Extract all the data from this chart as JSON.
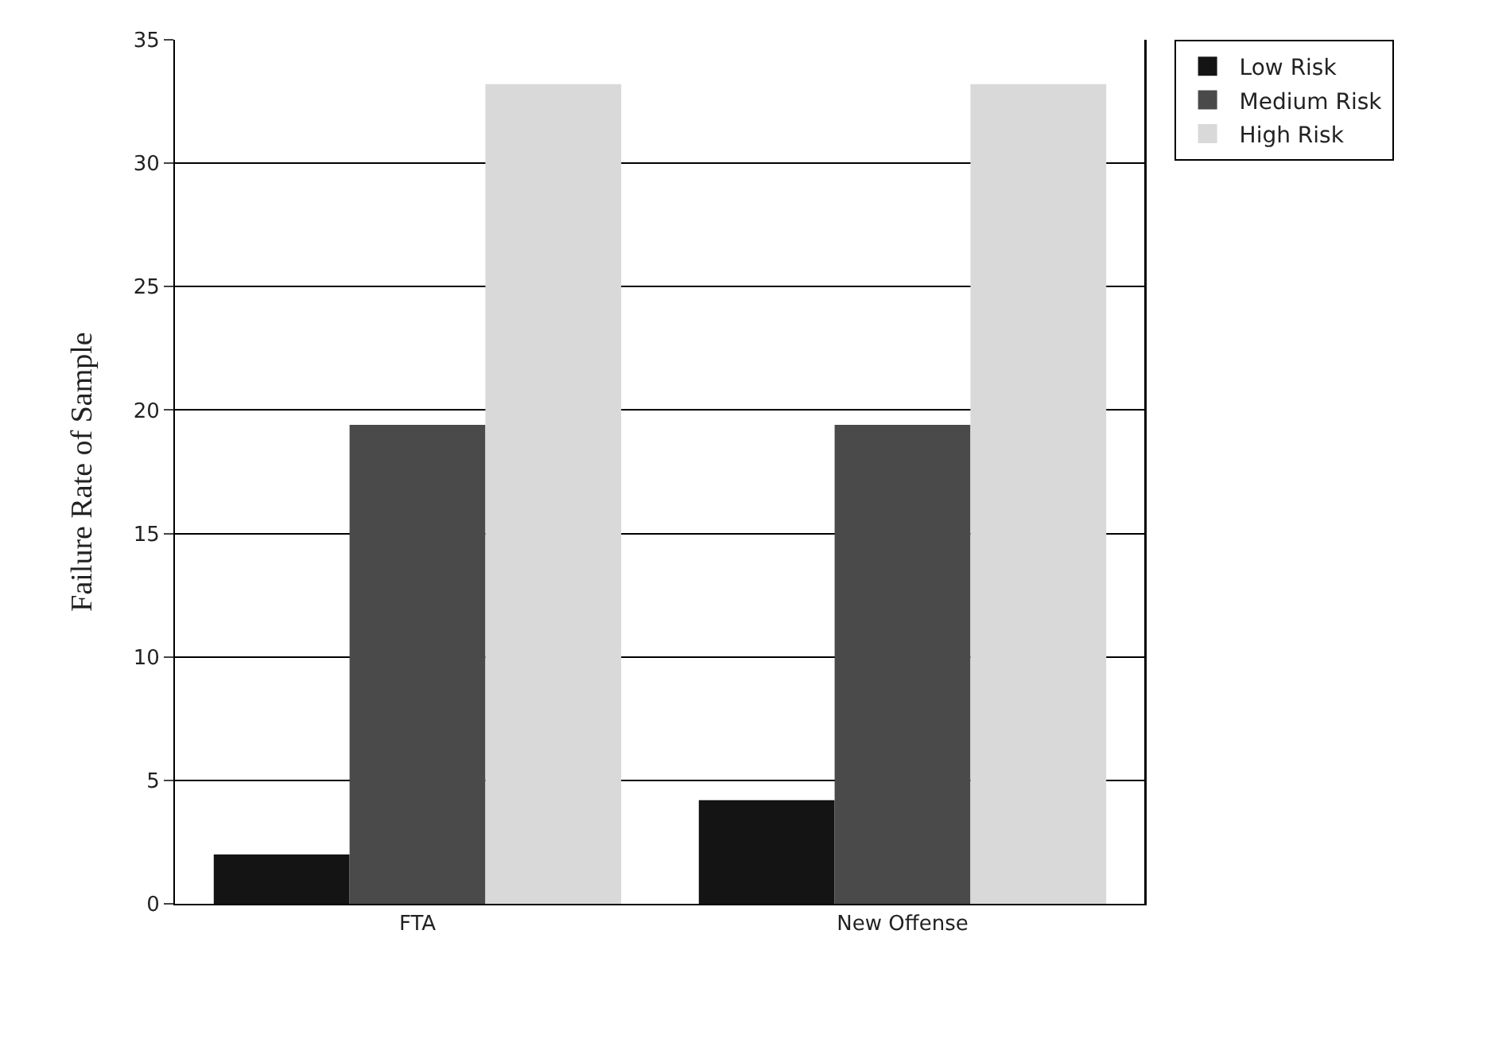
{
  "chart_data": {
    "type": "bar",
    "ylabel": "Failure Rate of Sample",
    "categories": [
      "FTA",
      "New Offense"
    ],
    "series": [
      {
        "name": "Low Risk",
        "color": "#141414",
        "values": [
          2.0,
          4.2
        ]
      },
      {
        "name": "Medium Risk",
        "color": "#4a4a4a",
        "values": [
          19.4,
          19.4
        ]
      },
      {
        "name": "High Risk",
        "color": "#d9d9d9",
        "values": [
          33.2,
          33.2
        ]
      }
    ],
    "ylim": [
      0,
      35
    ],
    "yticks": [
      0,
      5,
      10,
      15,
      20,
      25,
      30,
      35
    ],
    "grid": "y",
    "legend": "top right"
  }
}
